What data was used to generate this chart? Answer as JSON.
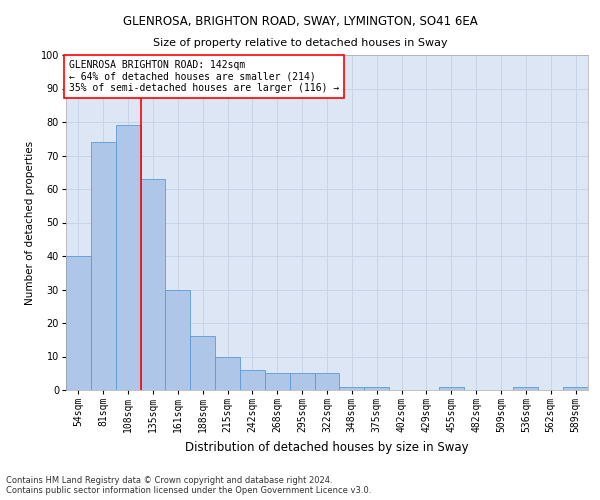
{
  "title1": "GLENROSA, BRIGHTON ROAD, SWAY, LYMINGTON, SO41 6EA",
  "title2": "Size of property relative to detached houses in Sway",
  "xlabel": "Distribution of detached houses by size in Sway",
  "ylabel": "Number of detached properties",
  "footnote": "Contains HM Land Registry data © Crown copyright and database right 2024.\nContains public sector information licensed under the Open Government Licence v3.0.",
  "bar_labels": [
    "54sqm",
    "81sqm",
    "108sqm",
    "135sqm",
    "161sqm",
    "188sqm",
    "215sqm",
    "242sqm",
    "268sqm",
    "295sqm",
    "322sqm",
    "348sqm",
    "375sqm",
    "402sqm",
    "429sqm",
    "455sqm",
    "482sqm",
    "509sqm",
    "536sqm",
    "562sqm",
    "589sqm"
  ],
  "bar_values": [
    40,
    74,
    79,
    63,
    30,
    16,
    10,
    6,
    5,
    5,
    5,
    1,
    1,
    0,
    0,
    1,
    0,
    0,
    1,
    0,
    1
  ],
  "bar_color": "#aec6e8",
  "bar_edge_color": "#5b9bd5",
  "grid_color": "#c8d4e8",
  "background_color": "#dce6f5",
  "vline_x": 2.5,
  "vline_color": "red",
  "annotation_text": "GLENROSA BRIGHTON ROAD: 142sqm\n← 64% of detached houses are smaller (214)\n35% of semi-detached houses are larger (116) →",
  "annotation_box_color": "white",
  "annotation_box_edge": "red",
  "ylim": [
    0,
    100
  ],
  "yticks": [
    0,
    10,
    20,
    30,
    40,
    50,
    60,
    70,
    80,
    90,
    100
  ],
  "title1_fontsize": 8.5,
  "title2_fontsize": 8,
  "xlabel_fontsize": 8.5,
  "ylabel_fontsize": 7.5,
  "tick_fontsize": 7,
  "annotation_fontsize": 7,
  "footnote_fontsize": 6
}
